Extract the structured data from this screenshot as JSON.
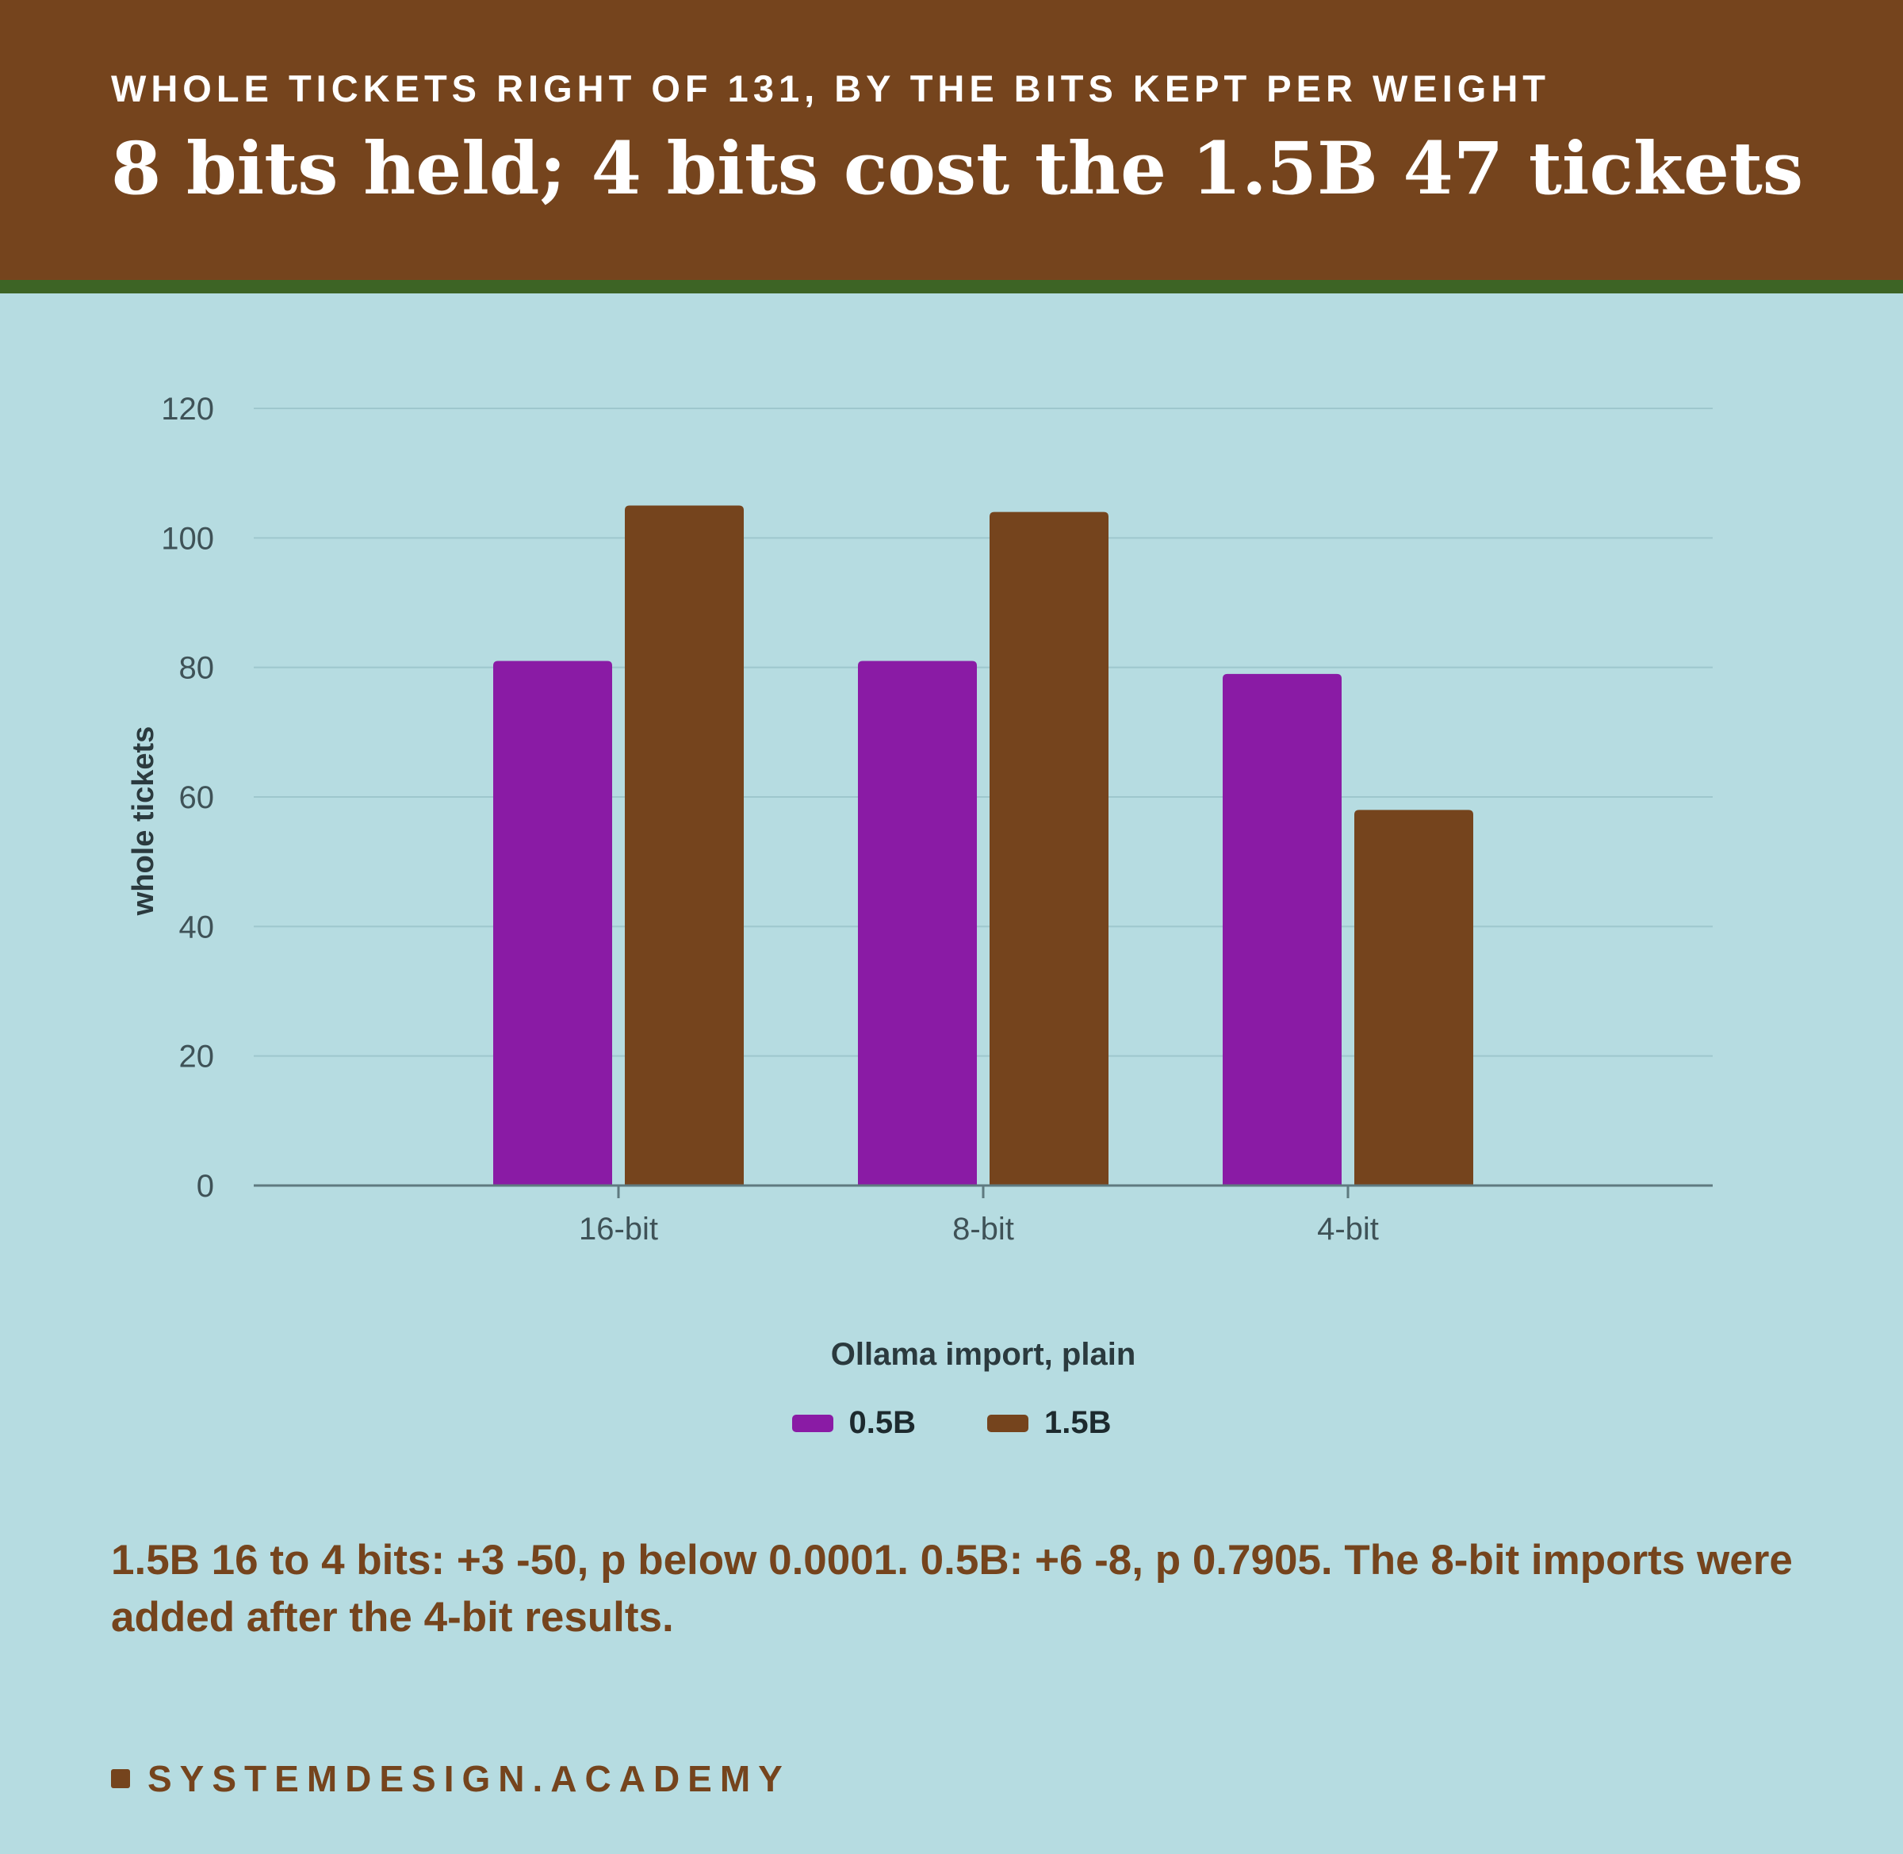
{
  "header": {
    "kicker": "WHOLE TICKETS RIGHT OF 131, BY THE BITS KEPT PER WEIGHT",
    "headline": "8 bits held; 4 bits cost the 1.5B 47 tickets"
  },
  "chart_data": {
    "type": "bar",
    "categories": [
      "16-bit",
      "8-bit",
      "4-bit"
    ],
    "series": [
      {
        "name": "0.5B",
        "values": [
          81,
          81,
          79
        ],
        "color": "#8a1ba5"
      },
      {
        "name": "1.5B",
        "values": [
          105,
          104,
          58
        ],
        "color": "#75441d"
      }
    ],
    "xlabel": "Ollama import, plain",
    "ylabel": "whole tickets",
    "ylim": [
      0,
      120
    ],
    "yticks": [
      "0",
      "20",
      "40",
      "60",
      "80",
      "100",
      "120"
    ],
    "grid": true,
    "legend": "bottom-center"
  },
  "note": "1.5B 16 to 4 bits: +3 -50, p below 0.0001. 0.5B: +6 -8, p 0.7905. The 8-bit imports were added after the 4-bit results.",
  "brand": "SYSTEMDESIGN.ACADEMY",
  "colors": {
    "background": "#b6dce1",
    "header": "#75441d",
    "header_rule": "#3d6425",
    "accent_text": "#75441d"
  }
}
